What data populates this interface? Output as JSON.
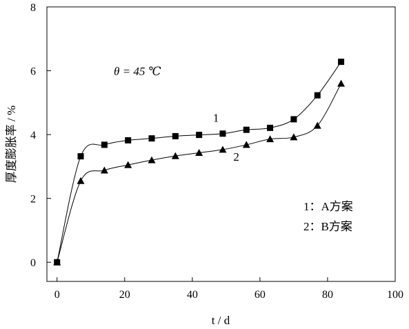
{
  "chart_data": {
    "type": "line",
    "xlabel": "t / d",
    "ylabel": "厚度膨胀率 / %",
    "xlim": [
      -3,
      100
    ],
    "ylim": [
      -0.6,
      8
    ],
    "xticks": [
      "0",
      "20",
      "40",
      "60",
      "80",
      "100"
    ],
    "yticks": [
      "0",
      "2",
      "4",
      "6",
      "8"
    ],
    "annotation": "θ = 45 ℃",
    "legend": {
      "position": "bottom-right",
      "entries": [
        "1：A方案",
        "2：B方案"
      ]
    },
    "grid": false,
    "series": [
      {
        "name": "1",
        "marker": "square",
        "x": [
          0,
          7,
          14,
          21,
          28,
          35,
          42,
          49,
          56,
          63,
          70,
          77,
          84
        ],
        "y": [
          0.0,
          3.32,
          3.68,
          3.82,
          3.88,
          3.95,
          3.99,
          4.03,
          4.15,
          4.21,
          4.48,
          5.23,
          6.28
        ]
      },
      {
        "name": "2",
        "marker": "triangle",
        "x": [
          0,
          7,
          14,
          21,
          28,
          35,
          42,
          49,
          56,
          63,
          70,
          77,
          84
        ],
        "y": [
          0.0,
          2.55,
          2.88,
          3.05,
          3.2,
          3.33,
          3.43,
          3.53,
          3.68,
          3.86,
          3.92,
          4.28,
          5.6
        ]
      }
    ]
  }
}
